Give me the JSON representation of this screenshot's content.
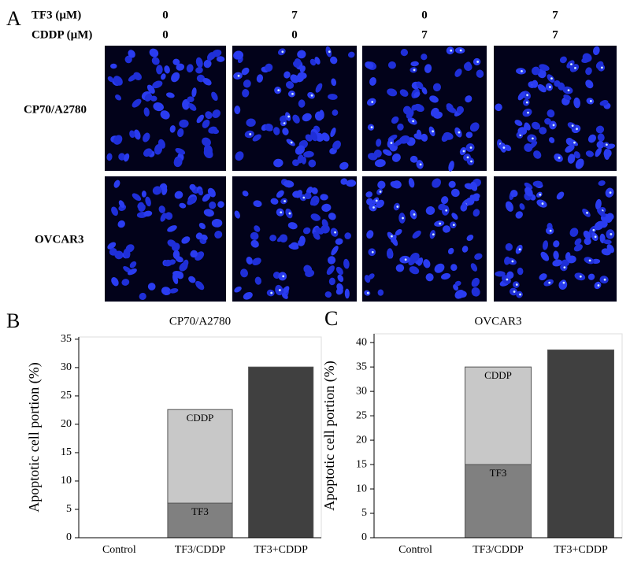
{
  "panel_a": {
    "label": "A",
    "conditions": [
      {
        "name": "TF3 (µM)",
        "values": [
          "0",
          "7",
          "0",
          "7"
        ]
      },
      {
        "name": "CDDP (µM)",
        "values": [
          "0",
          "0",
          "7",
          "7"
        ]
      }
    ],
    "rows": [
      "CP70/A2780",
      "OVCAR3"
    ]
  },
  "panel_labels": [
    "B",
    "C"
  ],
  "chart_data": [
    {
      "type": "bar",
      "title": "CP70/A2780",
      "ylabel": "Apoptotic cell portion (%)",
      "categories": [
        "Control",
        "TF3/CDDP",
        "TF3+CDDP"
      ],
      "series": [
        {
          "name": "TF3",
          "color": "#808080",
          "values": [
            null,
            6.1,
            null
          ]
        },
        {
          "name": "CDDP",
          "color": "#c8c8c8",
          "values": [
            null,
            16.5,
            null
          ]
        },
        {
          "color": "#404040",
          "values": [
            0,
            null,
            30.1
          ]
        }
      ],
      "stacked": true,
      "ylim": [
        0,
        35.4
      ],
      "yticks": [
        0,
        5,
        10,
        15,
        20,
        25,
        30,
        35
      ]
    },
    {
      "type": "bar",
      "title": "OVCAR3",
      "ylabel": "Apoptotic cell portion (%)",
      "categories": [
        "Control",
        "TF3/CDDP",
        "TF3+CDDP"
      ],
      "series": [
        {
          "name": "TF3",
          "color": "#808080",
          "values": [
            null,
            15,
            null
          ]
        },
        {
          "name": "CDDP",
          "color": "#c8c8c8",
          "values": [
            null,
            20,
            null
          ]
        },
        {
          "color": "#404040",
          "values": [
            0,
            null,
            38.5
          ]
        }
      ],
      "stacked": true,
      "ylim": [
        0,
        41.8
      ],
      "yticks": [
        0,
        5,
        10,
        15,
        20,
        25,
        30,
        35,
        40
      ]
    }
  ]
}
